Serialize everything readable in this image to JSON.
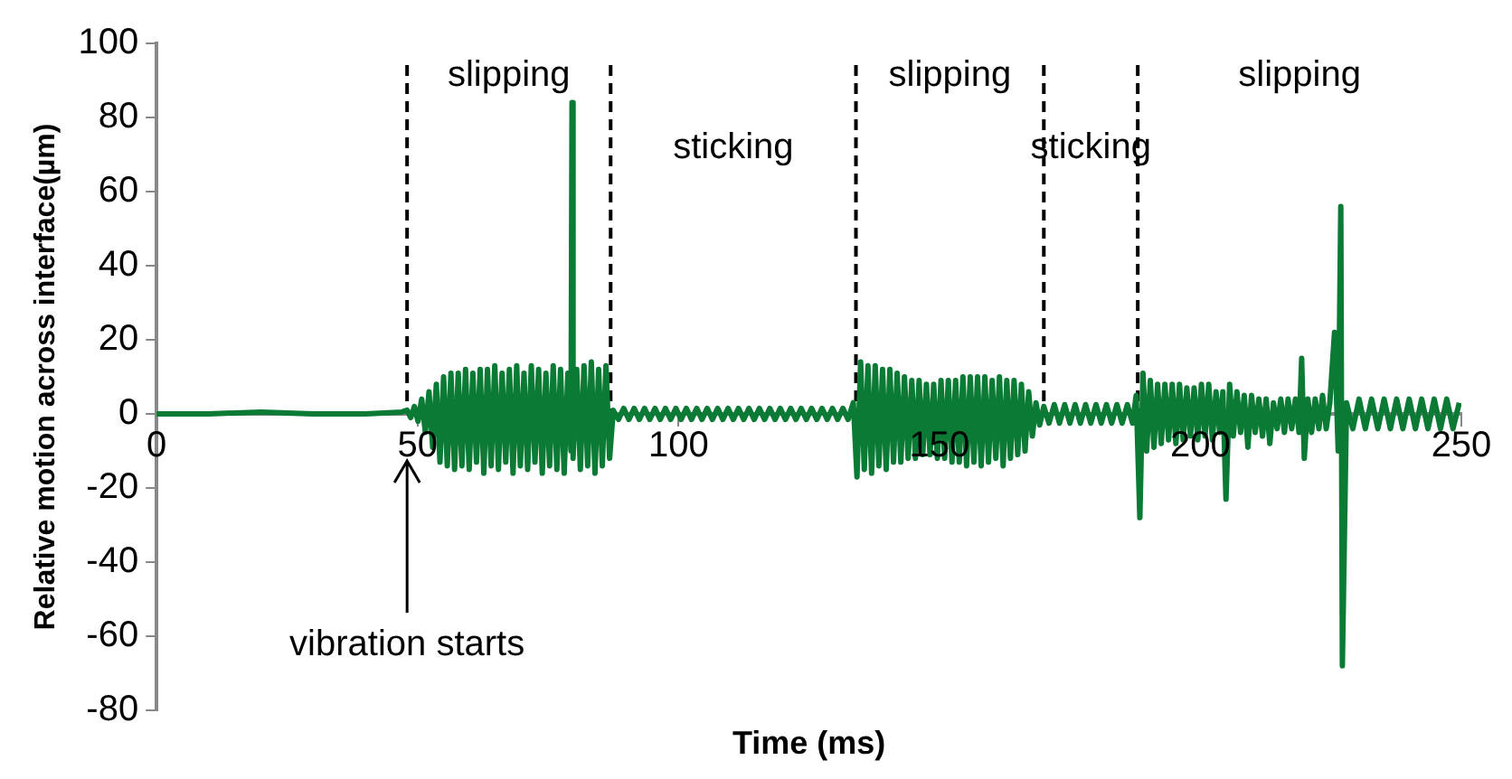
{
  "chart_data": {
    "type": "line",
    "xlabel": "Time (ms)",
    "ylabel": "Relative motion across interface(µm)",
    "xlim": [
      0,
      250
    ],
    "xticks": [
      0,
      50,
      100,
      150,
      200,
      250
    ],
    "ylim": [
      -80,
      100
    ],
    "yticks": [
      -80,
      -60,
      -40,
      -20,
      0,
      20,
      40,
      60,
      80,
      100
    ],
    "grid": false,
    "legend": false,
    "marker": "none",
    "line_style": "solid",
    "series": [
      {
        "color": "#0a7a35",
        "x": [
          0,
          10,
          20,
          30,
          40,
          47,
          48,
          48.7,
          49.4,
          50.1,
          50.8,
          51.5,
          52.2,
          52.9,
          53.6,
          54.3,
          55,
          55.7,
          56.4,
          57.1,
          57.8,
          58.5,
          59.2,
          59.9,
          60.6,
          61.3,
          62,
          62.7,
          63.4,
          64.1,
          64.8,
          65.5,
          66.2,
          66.9,
          67.6,
          68.3,
          69,
          69.7,
          70.4,
          71.1,
          71.8,
          72.5,
          73.2,
          73.9,
          74.6,
          75.3,
          76,
          76.7,
          77.4,
          78.1,
          78.8,
          79.4,
          79.6,
          79.8,
          80.5,
          81.2,
          81.9,
          82.6,
          83.3,
          84,
          84.7,
          85.4,
          86.1,
          86.8,
          87.5,
          88.5,
          89.5,
          90.5,
          91.5,
          92.5,
          93.5,
          94.5,
          95.5,
          96.5,
          97.5,
          98.5,
          99.5,
          100.5,
          101.5,
          102.5,
          103.5,
          104.5,
          105.5,
          106.5,
          107.5,
          108.5,
          109.5,
          110.5,
          111.5,
          112.5,
          113.5,
          114.5,
          115.5,
          116.5,
          117.5,
          118.5,
          119.5,
          120.5,
          121.5,
          122.5,
          123.5,
          124.5,
          125.5,
          126.5,
          127.5,
          128.5,
          129.5,
          130.5,
          131.5,
          132.5,
          133.5,
          134.2,
          134.9,
          135.6,
          136.3,
          137,
          137.7,
          138.4,
          139.1,
          139.8,
          140.5,
          141.2,
          141.9,
          142.6,
          143.3,
          144,
          144.7,
          145.4,
          146.1,
          146.8,
          147.5,
          148.2,
          148.9,
          149.6,
          150.3,
          151,
          151.7,
          152.4,
          153.1,
          153.8,
          154.5,
          155.2,
          155.9,
          156.6,
          157.3,
          158,
          158.7,
          159.4,
          160.1,
          160.8,
          161.5,
          162.2,
          162.9,
          163.6,
          164.3,
          165,
          165.7,
          166.4,
          167.1,
          167.8,
          168.5,
          169.2,
          170,
          171,
          172,
          173,
          174,
          175,
          176,
          177,
          178,
          179,
          180,
          181,
          182,
          183,
          184,
          185,
          186,
          187,
          187.7,
          188.4,
          189,
          189.7,
          190.4,
          191.1,
          191.8,
          192.5,
          193.2,
          193.9,
          194.6,
          195.3,
          196,
          196.7,
          197.4,
          198.1,
          198.8,
          199.5,
          200.2,
          200.9,
          201.6,
          202.3,
          203,
          203.7,
          204.3,
          204.9,
          205.6,
          206.3,
          207,
          207.7,
          208.4,
          209.1,
          209.8,
          210.5,
          211.2,
          211.9,
          212.6,
          213.3,
          214,
          214.7,
          215.4,
          216.1,
          216.8,
          217.5,
          218.2,
          218.9,
          219.4,
          219.9,
          220.6,
          221.3,
          222,
          222.7,
          223.4,
          224.1,
          224.8,
          225.7,
          226.4,
          226.9,
          227.2,
          228,
          229.2,
          230.4,
          231.6,
          232.8,
          234,
          235.2,
          236.4,
          237.6,
          238.8,
          240,
          241.2,
          242.4,
          243.6,
          244.8,
          246,
          247.2,
          248.4,
          249.6
        ],
        "values": [
          0,
          0,
          0.5,
          0,
          0,
          0.5,
          1,
          -1,
          2,
          -2,
          4,
          -5,
          6,
          -9,
          8,
          -13,
          10,
          -14,
          11,
          -15,
          11,
          -14,
          12,
          -15,
          11,
          -13,
          12,
          -16,
          12,
          -14,
          13,
          -15,
          11,
          -13,
          12,
          -16,
          13,
          -14,
          11,
          -15,
          13,
          -13,
          12,
          -16,
          11,
          -14,
          13,
          -15,
          12,
          -16,
          11,
          -10,
          84,
          -12,
          12,
          -15,
          13,
          -14,
          14,
          -16,
          12,
          -14,
          13,
          -12,
          1,
          -1.5,
          1.5,
          -1.5,
          1.5,
          -1.5,
          1.5,
          -1.5,
          1.5,
          -1.5,
          1.5,
          -1.5,
          1.5,
          -1.5,
          1.5,
          -1.5,
          1.5,
          -1.5,
          1.5,
          -1.5,
          1.5,
          -1.5,
          1.5,
          -1.5,
          1.5,
          -1.5,
          1.5,
          -1.5,
          1.5,
          -1.5,
          1.5,
          -1.5,
          1.5,
          -1.5,
          1.5,
          -1.5,
          1.5,
          -1.5,
          1.5,
          -1.5,
          1.5,
          -1.5,
          1.5,
          -1.5,
          1.5,
          -1.5,
          3,
          -17,
          14,
          -15,
          13,
          -16,
          13,
          -14,
          12,
          -15,
          12,
          -13,
          11,
          -13,
          10,
          -12,
          9,
          -12,
          9,
          -11,
          8,
          -11,
          8,
          -12,
          9,
          -12,
          9,
          -13,
          9,
          -13,
          10,
          -14,
          10,
          -13,
          10,
          -14,
          10,
          -13,
          9,
          -12,
          10,
          -14,
          9,
          -12,
          9,
          -11,
          8,
          -10,
          6,
          -6,
          3,
          -3,
          2,
          -2.5,
          2.5,
          -2.5,
          2.5,
          -2.5,
          2.5,
          -2.5,
          2.5,
          -2.5,
          2.5,
          -2.5,
          2.5,
          -2.5,
          2.5,
          -2.5,
          2.5,
          -2.5,
          5,
          -28,
          11,
          -10,
          9,
          -9,
          8,
          -8,
          8,
          -7,
          8,
          -8,
          8,
          -7,
          7,
          -6,
          7,
          -7,
          8,
          -6,
          8,
          -7,
          6,
          -5,
          6,
          -23,
          8,
          -6,
          6,
          -5,
          5,
          -9,
          5,
          -5,
          4,
          -6,
          4,
          -8,
          3,
          -4,
          4,
          -5,
          4,
          -4,
          4,
          -5,
          15,
          -12,
          4,
          -5,
          4,
          -4,
          5,
          -4,
          3,
          22,
          -10,
          56,
          -68,
          3,
          -4,
          4,
          -4,
          4,
          -4,
          4,
          -4,
          4,
          -4,
          4,
          -4,
          4,
          -4,
          4,
          -4,
          4,
          -4,
          3
        ]
      }
    ],
    "ref_lines": [
      {
        "axis": "x",
        "value": 48,
        "color": "#000000",
        "line_style": "dashed"
      },
      {
        "axis": "x",
        "value": 87,
        "color": "#000000",
        "line_style": "dashed"
      },
      {
        "axis": "x",
        "value": 134,
        "color": "#000000",
        "line_style": "dashed"
      },
      {
        "axis": "x",
        "value": 170,
        "color": "#000000",
        "line_style": "dashed"
      },
      {
        "axis": "x",
        "value": 188,
        "color": "#000000",
        "line_style": "dashed"
      }
    ],
    "annotations": [
      "slipping",
      "sticking",
      "slipping",
      "sticking",
      "slipping",
      "vibration starts"
    ]
  }
}
